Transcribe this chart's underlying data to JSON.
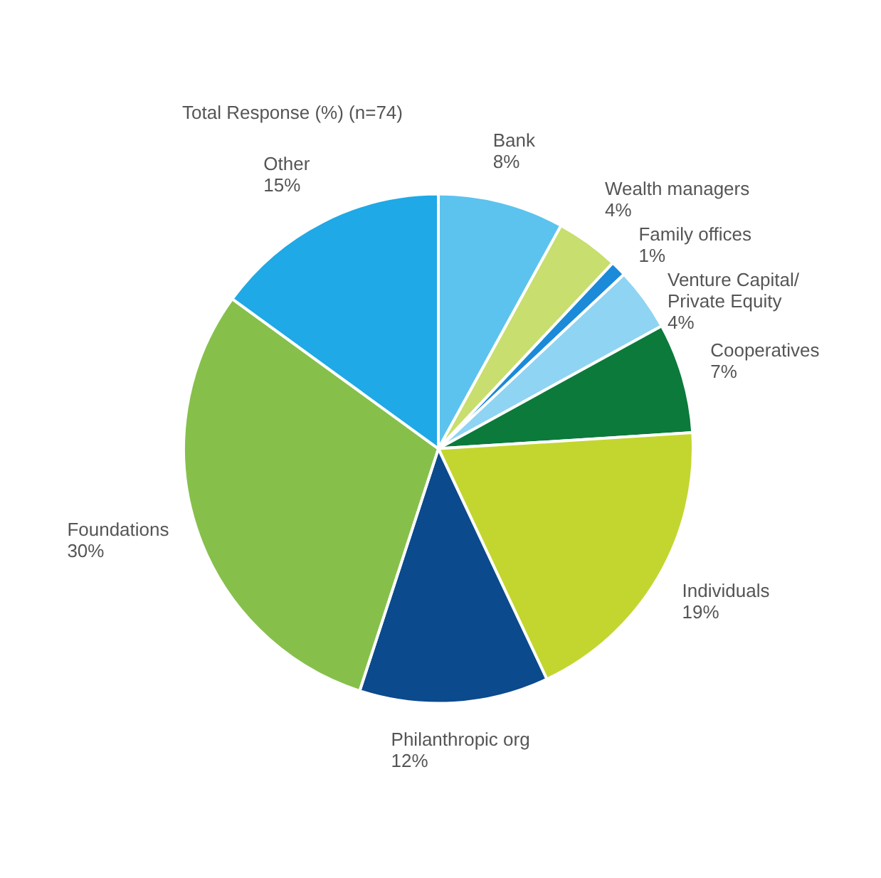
{
  "chart_data": {
    "type": "pie",
    "title": "Total Response (%) (n=74)",
    "categories": [
      "Bank",
      "Wealth managers",
      "Family offices",
      "Venture Capital/ Private Equity",
      "Cooperatives",
      "Individuals",
      "Philanthropic org",
      "Foundations",
      "Other"
    ],
    "values": [
      8,
      4,
      1,
      4,
      7,
      19,
      12,
      30,
      15
    ],
    "value_labels": [
      "8%",
      "4%",
      "1%",
      "4%",
      "7%",
      "19%",
      "12%",
      "30%",
      "15%"
    ],
    "colors": [
      "#5cc3ee",
      "#c8de6e",
      "#1b8ad8",
      "#8fd4f3",
      "#0b7a3b",
      "#c3d630",
      "#0b4a8c",
      "#86c04b",
      "#1fa9e6"
    ],
    "legend": false
  }
}
